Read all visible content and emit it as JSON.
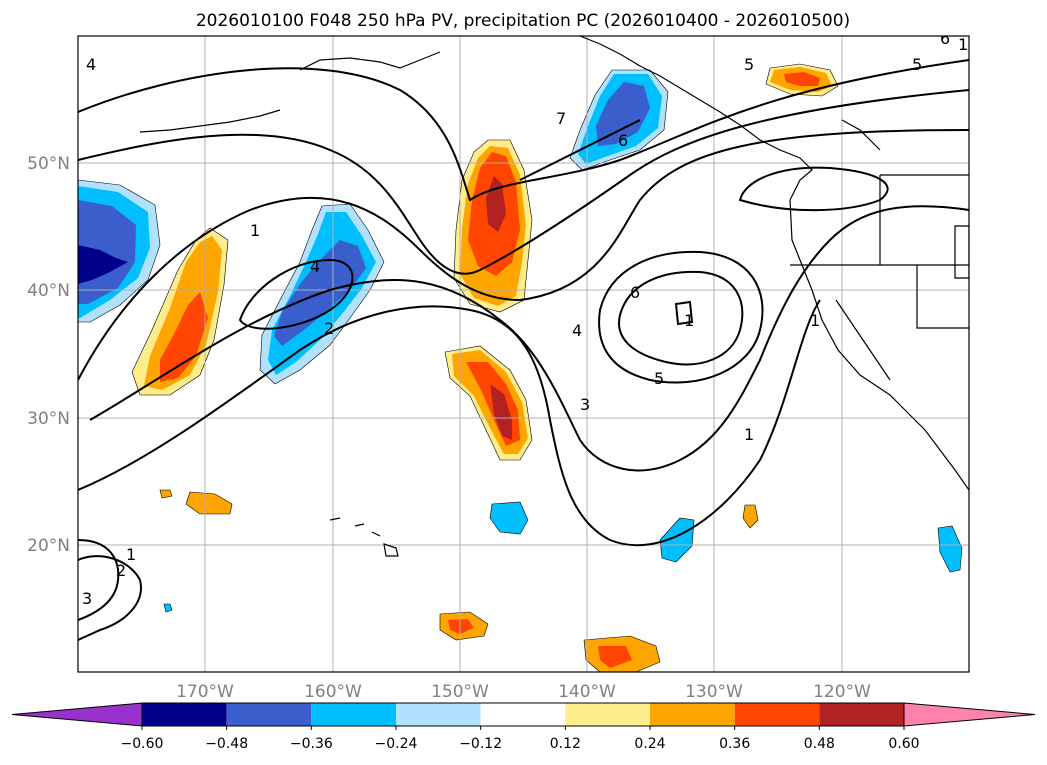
{
  "title": "2026010100 F048 250 hPa PV, precipitation PC (2026010400 - 2026010500)",
  "latitude_labels": [
    "50°N",
    "40°N",
    "30°N",
    "20°N"
  ],
  "longitude_labels": [
    "170°W",
    "160°W",
    "150°W",
    "140°W",
    "130°W",
    "120°W"
  ],
  "colorbar": {
    "ticks": [
      "−0.60",
      "−0.48",
      "−0.36",
      "−0.24",
      "−0.12",
      "0.12",
      "0.24",
      "0.36",
      "0.48",
      "0.60"
    ],
    "colors": [
      "#9932cc",
      "#00008b",
      "#3a5fcd",
      "#00bfff",
      "#b0e2ff",
      "#ffffff",
      "#ffec8b",
      "#ffa500",
      "#ff4500",
      "#b22222",
      "#ff82ab"
    ]
  },
  "pv_contour_labels": [
    "4",
    "1",
    "4",
    "2",
    "7",
    "6",
    "5",
    "5",
    "6",
    "1",
    "4",
    "3",
    "5",
    "1",
    "1",
    "1",
    "1",
    "2",
    "3",
    "6"
  ],
  "colors": {
    "contour": "#000000",
    "grid": "#b0b0b0",
    "axis_label": "#808080"
  }
}
